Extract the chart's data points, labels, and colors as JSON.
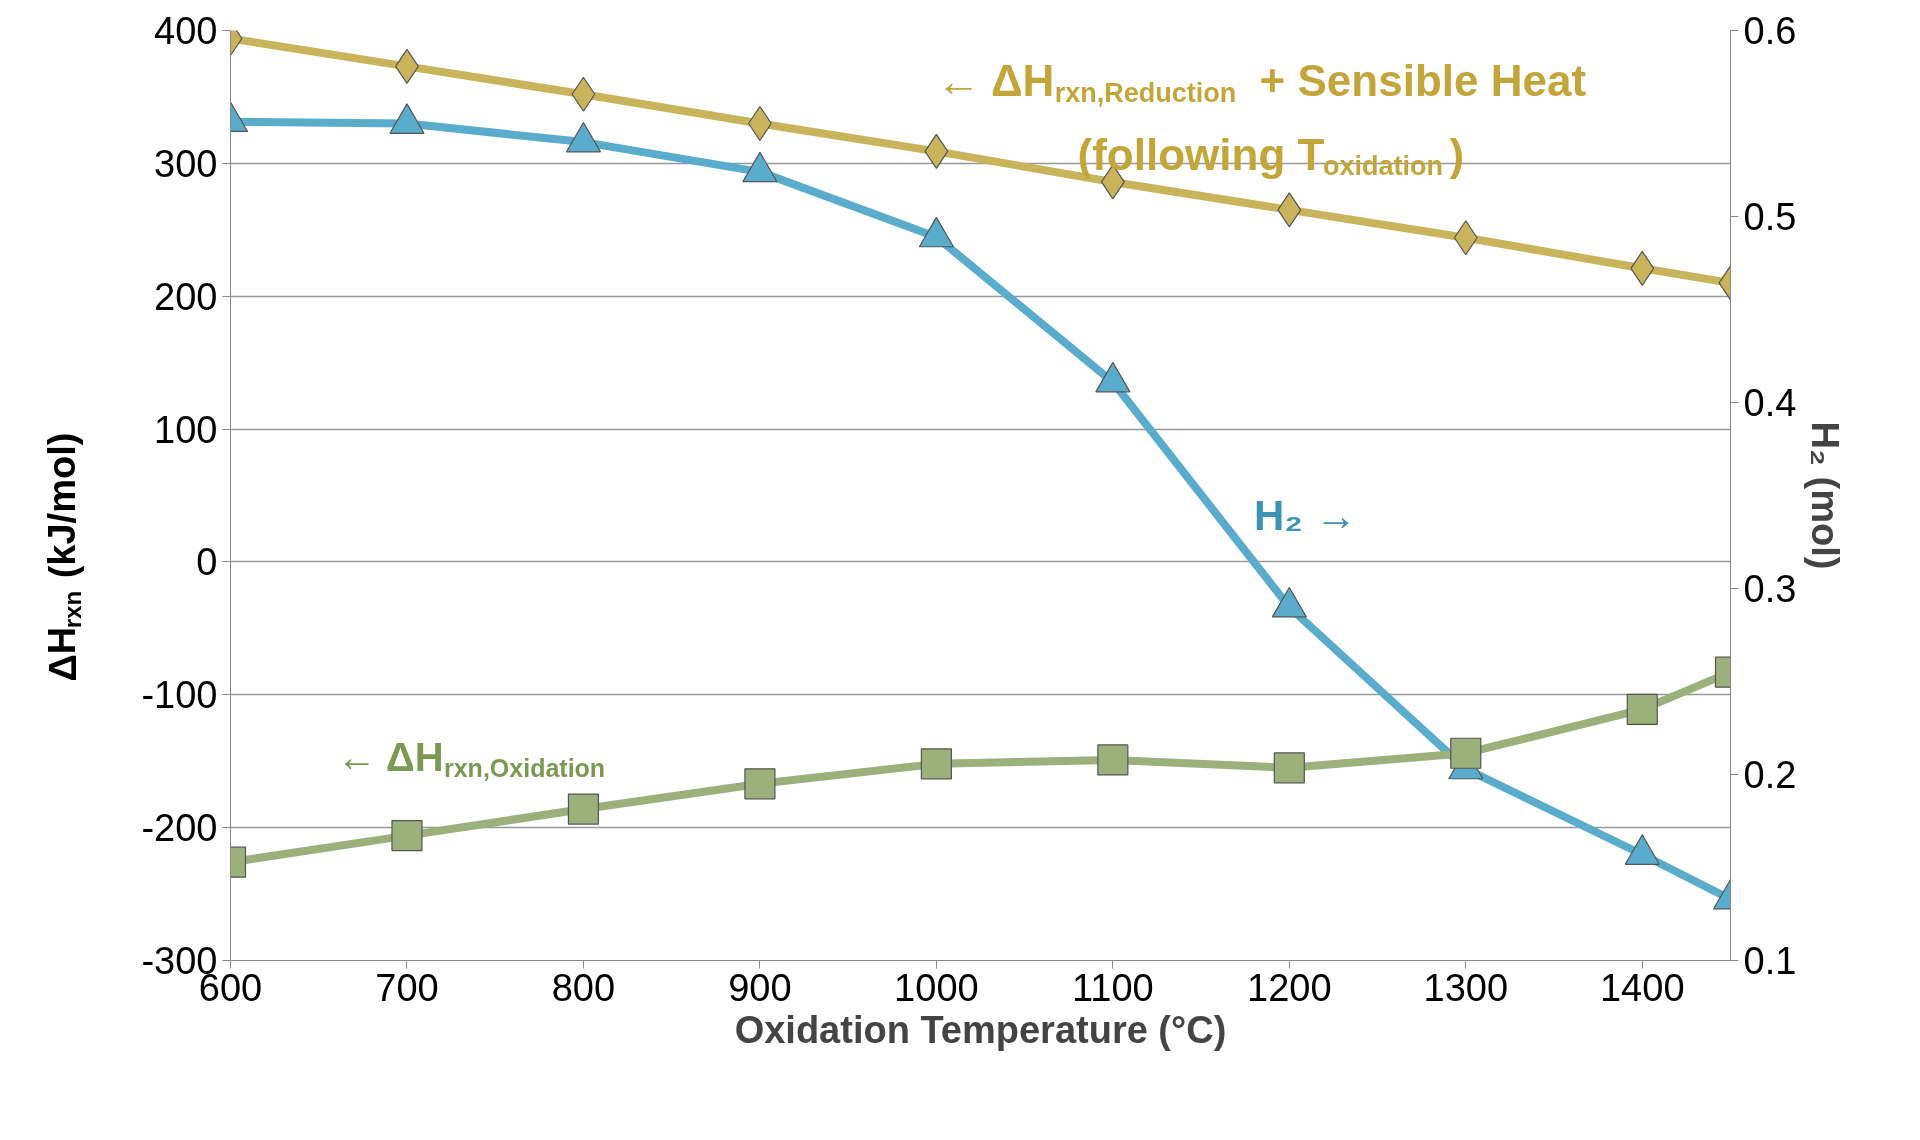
{
  "chart_data": {
    "type": "line",
    "xlabel": "Oxidation Temperature (°C)",
    "ylabel": "ΔH$_{rxn}$ (kJ/mol)",
    "y2label": "H₂ (mol)",
    "x": [
      600,
      700,
      800,
      900,
      1000,
      1100,
      1200,
      1300,
      1400,
      1450
    ],
    "xlim": [
      600,
      1450
    ],
    "xticks": [
      600,
      700,
      800,
      900,
      1000,
      1100,
      1200,
      1300,
      1400
    ],
    "ylim": [
      -300,
      400
    ],
    "yticks": [
      -300,
      -200,
      -100,
      0,
      100,
      200,
      300,
      400
    ],
    "y2lim": [
      0.1,
      0.6
    ],
    "y2ticks": [
      0.1,
      0.2,
      0.3,
      0.4,
      0.5,
      0.6
    ],
    "grid": "y",
    "legend": false,
    "series": [
      {
        "name": "← ΔH$_{rxn,Reduction}$ + Sensible Heat\n(following T$_{oxidation}$)",
        "color": "#c9b45c",
        "marker": "diamond",
        "values": [
          394,
          373,
          352,
          330,
          309,
          286,
          265,
          244,
          221,
          210
        ]
      },
      {
        "name": "H₂ →",
        "color": "#5aaccd",
        "marker": "triangle",
        "axis": "y2",
        "values": [
          0.551,
          0.55,
          0.54,
          0.524,
          0.489,
          0.411,
          0.29,
          0.203,
          0.157,
          0.133
        ]
      },
      {
        "name": "← ΔH$_{rxn,Oxidation}$",
        "color": "#9bb07a",
        "marker": "square",
        "values": [
          -226,
          -206,
          -186,
          -167,
          -152,
          -149,
          -155,
          -144,
          -111,
          -83
        ]
      }
    ]
  }
}
